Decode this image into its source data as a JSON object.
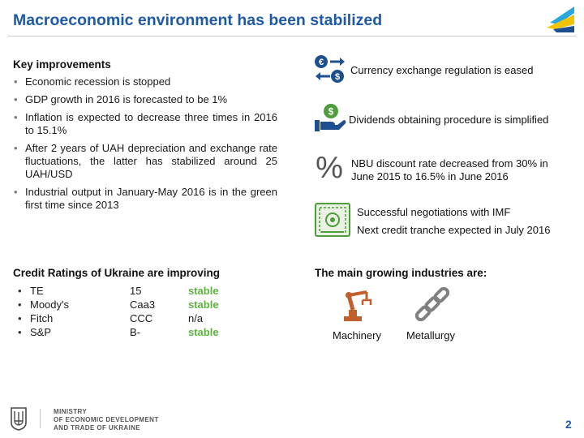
{
  "slide": {
    "title": "Macroeconomic environment has been stabilized",
    "page_number": "2"
  },
  "key_improvements": {
    "heading": "Key improvements",
    "items": [
      "Economic recession is stopped",
      "GDP growth in 2016 is forecasted to be 1%",
      "Inflation is expected to decrease three times in 2016 to 15.1%",
      "After 2 years of UAH depreciation and exchange rate fluctuations, the latter has stabilized around 25 UAH/USD",
      "Industrial output in January-May 2016 is in the green first time since 2013"
    ]
  },
  "credit_ratings": {
    "heading": "Credit Ratings of Ukraine are improving",
    "bullet": "•",
    "rows": [
      {
        "agency": "TE",
        "grade": "15",
        "outlook": "stable"
      },
      {
        "agency": "Moody's",
        "grade": "Caa3",
        "outlook": "stable"
      },
      {
        "agency": "Fitch",
        "grade": "CCC",
        "outlook": "n/a"
      },
      {
        "agency": "S&P",
        "grade": "B-",
        "outlook": "stable"
      }
    ]
  },
  "highlights": {
    "currency": "Currency exchange regulation is eased",
    "dividends": "Dividends obtaining procedure is simplified",
    "nbu_line1": "NBU discount rate decreased from 30% in",
    "nbu_line2": "June 2015 to 16.5% in June 2016",
    "imf_line1": "Successful negotiations with IMF",
    "imf_line2": "Next credit tranche expected in July 2016",
    "euro_symbol": "€",
    "dollar_symbol": "$",
    "dollar_symbol_2": "$",
    "percent_symbol": "%"
  },
  "industries": {
    "heading": "The main growing industries are:",
    "machinery": "Machinery",
    "metallurgy": "Metallurgy"
  },
  "footer": {
    "ministry_line1": "MINISTRY",
    "ministry_line2": "OF ECONOMIC DEVELOPMENT",
    "ministry_line3": "AND TRADE OF UKRAINE"
  },
  "colors": {
    "title_blue": "#1f5aa6",
    "icon_blue": "#1e4f8f",
    "icon_green": "#4d9e3a",
    "stable_green": "#5cb23a",
    "industry_orange": "#c0602c"
  }
}
